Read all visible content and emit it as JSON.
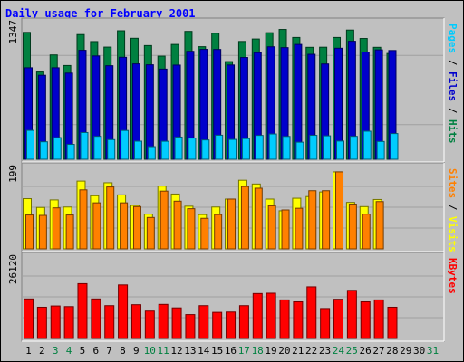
{
  "chart_data": {
    "type": "bar",
    "title": "Daily usage for February 2001",
    "days": [
      "1",
      "2",
      "3",
      "4",
      "5",
      "6",
      "7",
      "8",
      "9",
      "10",
      "11",
      "12",
      "13",
      "14",
      "15",
      "16",
      "17",
      "18",
      "19",
      "20",
      "21",
      "22",
      "23",
      "24",
      "25",
      "26",
      "27",
      "28",
      "29",
      "30",
      "31"
    ],
    "weekend_days": [
      "3",
      "4",
      "10",
      "11",
      "17",
      "18",
      "24",
      "25",
      "31"
    ],
    "panels": [
      {
        "name": "hits-files-pages",
        "max_label": "1347",
        "ymax": 1347,
        "right_label": [
          {
            "text": "Pages",
            "color": "#00ccff"
          },
          {
            "text": " / ",
            "color": "#000000"
          },
          {
            "text": "Files",
            "color": "#0000cc"
          },
          {
            "text": " / ",
            "color": "#000000"
          },
          {
            "text": "Hits",
            "color": "#008040"
          }
        ],
        "series": [
          {
            "name": "Hits",
            "color": "#008040",
            "values": [
              1234,
              849,
              1015,
              912,
              1213,
              1145,
              1091,
              1250,
              1177,
              1106,
              1003,
              1117,
              1244,
              1095,
              1226,
              950,
              1146,
              1170,
              1231,
              1263,
              1185,
              1089,
              1090,
              1185,
              1257,
              1175,
              1089,
              1029,
              0,
              0,
              0
            ]
          },
          {
            "name": "Files",
            "color": "#0000cc",
            "values": [
              890,
              817,
              890,
              838,
              1060,
              1005,
              910,
              992,
              928,
              919,
              877,
              916,
              1050,
              1069,
              1068,
              917,
              990,
              1037,
              1094,
              1086,
              1117,
              1021,
              927,
              1080,
              1148,
              1043,
              1064,
              1058,
              0,
              0,
              0
            ]
          },
          {
            "name": "Pages",
            "color": "#00ccff",
            "values": [
              281,
              170,
              211,
              145,
              260,
              223,
              191,
              280,
              176,
              123,
              175,
              216,
              206,
              188,
              234,
              193,
              201,
              232,
              246,
              222,
              166,
              233,
              228,
              177,
              223,
              273,
              173,
              250,
              0,
              0,
              0
            ]
          }
        ]
      },
      {
        "name": "visits-sites",
        "max_label": "199",
        "ymax": 199,
        "right_label": [
          {
            "text": "Sites",
            "color": "#ff8000"
          },
          {
            "text": " / ",
            "color": "#000000"
          },
          {
            "text": "Visits",
            "color": "#ffff00"
          }
        ],
        "series": [
          {
            "name": "Visits",
            "color": "#ffff00",
            "values": [
              120,
              99,
              117,
              100,
              162,
              127,
              158,
              129,
              104,
              83,
              150,
              131,
              102,
              82,
              100,
              119,
              164,
              155,
              119,
              91,
              121,
              125,
              136,
              184,
              111,
              101,
              118,
              0,
              0,
              0,
              0
            ]
          },
          {
            "name": "Sites",
            "color": "#ff8000",
            "values": [
              81,
              80,
              98,
              81,
              141,
              110,
              148,
              110,
              101,
              75,
              138,
              114,
              96,
              73,
              82,
              119,
              149,
              145,
              103,
              93,
              97,
              139,
              139,
              184,
              107,
              83,
              113,
              0,
              0,
              0,
              0
            ]
          }
        ]
      },
      {
        "name": "kbytes",
        "max_label": "26120",
        "ymax": 26120,
        "right_label": [
          {
            "text": "KBytes",
            "color": "#ff0000"
          }
        ],
        "series": [
          {
            "name": "KBytes",
            "color": "#ff0000",
            "values": [
              12400,
              9800,
              10200,
              10000,
              17200,
              12400,
              10300,
              16800,
              10600,
              8600,
              10700,
              9600,
              7500,
              10300,
              8200,
              8300,
              10300,
              14100,
              14200,
              12100,
              11500,
              16200,
              9400,
              12300,
              15100,
              11500,
              12100,
              9800,
              0,
              0,
              0
            ]
          }
        ]
      }
    ]
  }
}
